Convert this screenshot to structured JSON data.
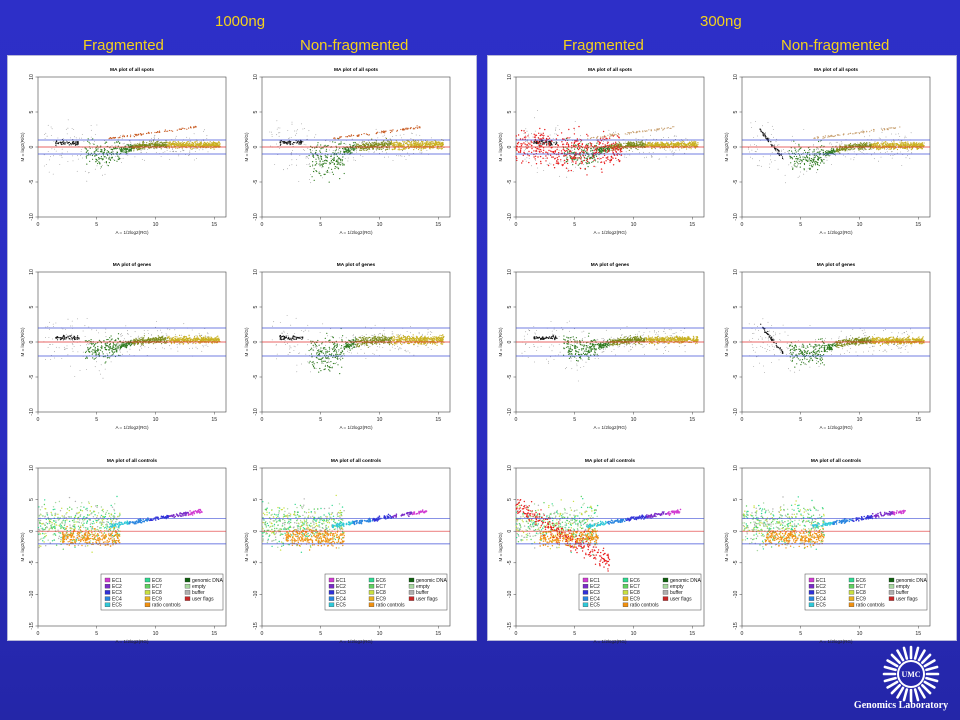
{
  "headings": {
    "dose_1000": "1000ng",
    "dose_300": "300ng",
    "col1": "Fragmented",
    "col2": "Non-fragmented",
    "col3": "Fragmented",
    "col4": "Non-fragmented"
  },
  "plot_titles": [
    "MA plot of all spots",
    "MA plot of genes",
    "MA plot of all controls"
  ],
  "logo": {
    "emblem_text": "UMC",
    "caption": "Genomics Laboratory"
  },
  "colors": {
    "background": "#2a2cc0",
    "heading": "#f5d21c",
    "ref_line_red": "#e03030",
    "ref_line_blue": "#4050d8"
  },
  "chart_data": [
    {
      "type": "scatter",
      "rows": [
        "MA plot of all spots",
        "MA plot of genes",
        "MA plot of all controls"
      ],
      "columns": [
        "1000ng Fragmented",
        "1000ng Non-fragmented",
        "300ng Fragmented",
        "300ng Non-fragmented"
      ],
      "xlabel": "A = 1/2log2(RG)",
      "ylabel": "M = log2(R/G)",
      "xlim": [
        0,
        16
      ],
      "ylim": [
        -10,
        10
      ],
      "ylim_controls": [
        -15,
        10
      ],
      "xticks": [
        0,
        5,
        10,
        15
      ],
      "yticks": [
        -10,
        -5,
        0,
        5,
        10
      ],
      "yticks_controls": [
        -15,
        -10,
        -5,
        0,
        5,
        10
      ],
      "reference_lines": [
        {
          "color": "red",
          "y": 0
        },
        {
          "color": "blue",
          "y": 1
        },
        {
          "color": "blue",
          "y": -1
        }
      ],
      "reference_lines_genes": [
        {
          "color": "red",
          "y": 0
        },
        {
          "color": "blue",
          "y": 2
        },
        {
          "color": "blue",
          "y": -2
        }
      ],
      "legend": {
        "placement": "bottom-right",
        "entries": [
          {
            "label": "EC1",
            "color": "#d23cd2"
          },
          {
            "label": "EC2",
            "color": "#7a2cc8"
          },
          {
            "label": "EC3",
            "color": "#3030d8"
          },
          {
            "label": "EC4",
            "color": "#2a86e0"
          },
          {
            "label": "EC5",
            "color": "#30c8d8"
          },
          {
            "label": "EC6",
            "color": "#30d890"
          },
          {
            "label": "EC7",
            "color": "#60d060"
          },
          {
            "label": "EC8",
            "color": "#c8e040"
          },
          {
            "label": "EC9",
            "color": "#e8b020"
          },
          {
            "label": "ratio controls",
            "color": "#f09010"
          },
          {
            "label": "genomic DNA",
            "color": "#106010"
          },
          {
            "label": "empty",
            "color": "#a8d8a0"
          },
          {
            "label": "buffer",
            "color": "#b0b0b0"
          },
          {
            "label": "user flags",
            "color": "#c82828"
          }
        ]
      }
    }
  ]
}
